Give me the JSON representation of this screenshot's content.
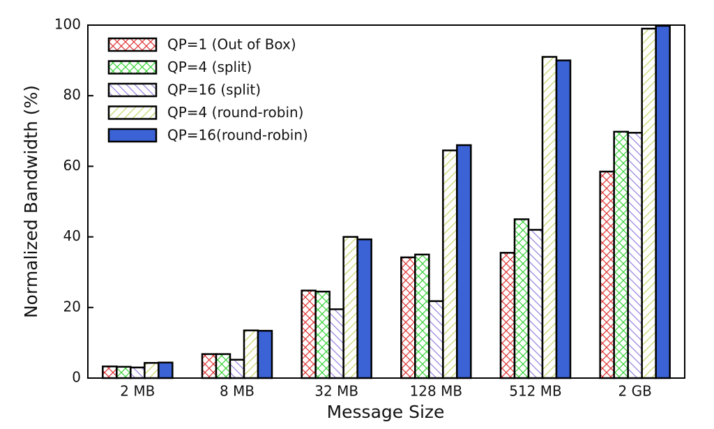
{
  "chart_data": {
    "type": "bar",
    "x_label": "Message Size",
    "y_label": "Normalized Bandwidth (%)",
    "categories": [
      "2 MB",
      "8 MB",
      "32 MB",
      "128 MB",
      "512 MB",
      "2 GB"
    ],
    "series": [
      {
        "name": "QP=1 (Out of Box)",
        "color": "#e03a3a",
        "hatch": "cross",
        "values": [
          3.3,
          6.8,
          24.8,
          34.2,
          35.5,
          58.5
        ]
      },
      {
        "name": "QP=4 (split)",
        "color": "#3ed43e",
        "hatch": "cross",
        "values": [
          3.2,
          6.8,
          24.5,
          35,
          45,
          69.8
        ]
      },
      {
        "name": "QP=16 (split)",
        "color": "#9a86e0",
        "hatch": "backslash",
        "values": [
          3.0,
          5.2,
          19.5,
          21.8,
          42,
          69.5
        ]
      },
      {
        "name": "QP=4 (round-robin)",
        "color": "#c9d66e",
        "hatch": "slash",
        "values": [
          4.3,
          13.5,
          40,
          64.5,
          91,
          99
        ]
      },
      {
        "name": "QP=16(round-robin)",
        "color": "#3b63d6",
        "hatch": "solid",
        "values": [
          4.4,
          13.4,
          39.3,
          66,
          90,
          99.8
        ]
      }
    ],
    "ylim": [
      0,
      100
    ],
    "yticks": [
      0,
      20,
      40,
      60,
      80,
      100
    ],
    "legend": "upper left"
  }
}
